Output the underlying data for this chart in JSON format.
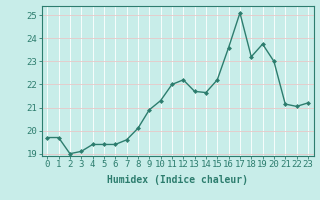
{
  "x": [
    0,
    1,
    2,
    3,
    4,
    5,
    6,
    7,
    8,
    9,
    10,
    11,
    12,
    13,
    14,
    15,
    16,
    17,
    18,
    19,
    20,
    21,
    22,
    23
  ],
  "y": [
    19.7,
    19.7,
    19.0,
    19.1,
    19.4,
    19.4,
    19.4,
    19.6,
    20.1,
    20.9,
    21.3,
    22.0,
    22.2,
    21.7,
    21.65,
    22.2,
    23.6,
    25.1,
    23.2,
    23.75,
    23.0,
    21.15,
    21.05,
    21.2
  ],
  "line_color": "#2d7d6e",
  "marker": "D",
  "marker_size": 2.0,
  "bg_color": "#c8ede9",
  "grid_color_major": "#e8c8c8",
  "grid_color_minor": "#ffffff",
  "tick_color": "#2d7d6e",
  "xlabel": "Humidex (Indice chaleur)",
  "ylim": [
    18.9,
    25.4
  ],
  "yticks": [
    19,
    20,
    21,
    22,
    23,
    24,
    25
  ],
  "xlim": [
    -0.5,
    23.5
  ],
  "xticks": [
    0,
    1,
    2,
    3,
    4,
    5,
    6,
    7,
    8,
    9,
    10,
    11,
    12,
    13,
    14,
    15,
    16,
    17,
    18,
    19,
    20,
    21,
    22,
    23
  ],
  "line_width": 1.0,
  "font_size": 6.5,
  "xlabel_font_size": 7.0
}
